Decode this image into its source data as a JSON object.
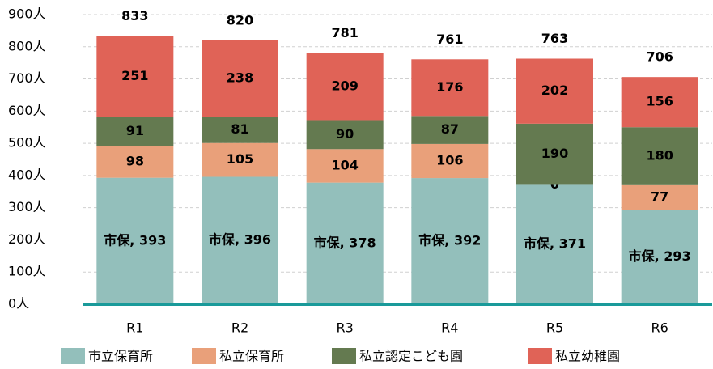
{
  "chart_data": {
    "type": "stacked_bar",
    "categories": [
      "R1",
      "R2",
      "R3",
      "R4",
      "R5",
      "R6"
    ],
    "series": [
      {
        "name": "市立保育所",
        "color": "#93bfbb",
        "values": [
          393,
          396,
          378,
          392,
          371,
          293
        ],
        "value_labels": [
          "市保, 393",
          "市保, 396",
          "市保, 378",
          "市保, 392",
          "市保, 371",
          "市保, 293"
        ]
      },
      {
        "name": "私立保育所",
        "color": "#e9a07a",
        "values": [
          98,
          105,
          104,
          106,
          0,
          77
        ]
      },
      {
        "name": "私立認定こども園",
        "color": "#647a50",
        "values": [
          91,
          81,
          90,
          87,
          190,
          180
        ]
      },
      {
        "name": "私立幼稚園",
        "color": "#e06357",
        "values": [
          251,
          238,
          209,
          176,
          202,
          156
        ]
      }
    ],
    "totals": [
      833,
      820,
      781,
      761,
      763,
      706
    ],
    "ylim": [
      0,
      900
    ],
    "yticks": [
      {
        "value": 0,
        "label": "0人"
      },
      {
        "value": 100,
        "label": "100人"
      },
      {
        "value": 200,
        "label": "200人"
      },
      {
        "value": 300,
        "label": "300人"
      },
      {
        "value": 400,
        "label": "400人"
      },
      {
        "value": 500,
        "label": "500人"
      },
      {
        "value": 600,
        "label": "600人"
      },
      {
        "value": 700,
        "label": "700人"
      },
      {
        "value": 800,
        "label": "800人"
      },
      {
        "value": 900,
        "label": "900人"
      }
    ],
    "grid": true,
    "legend": "bottom"
  }
}
